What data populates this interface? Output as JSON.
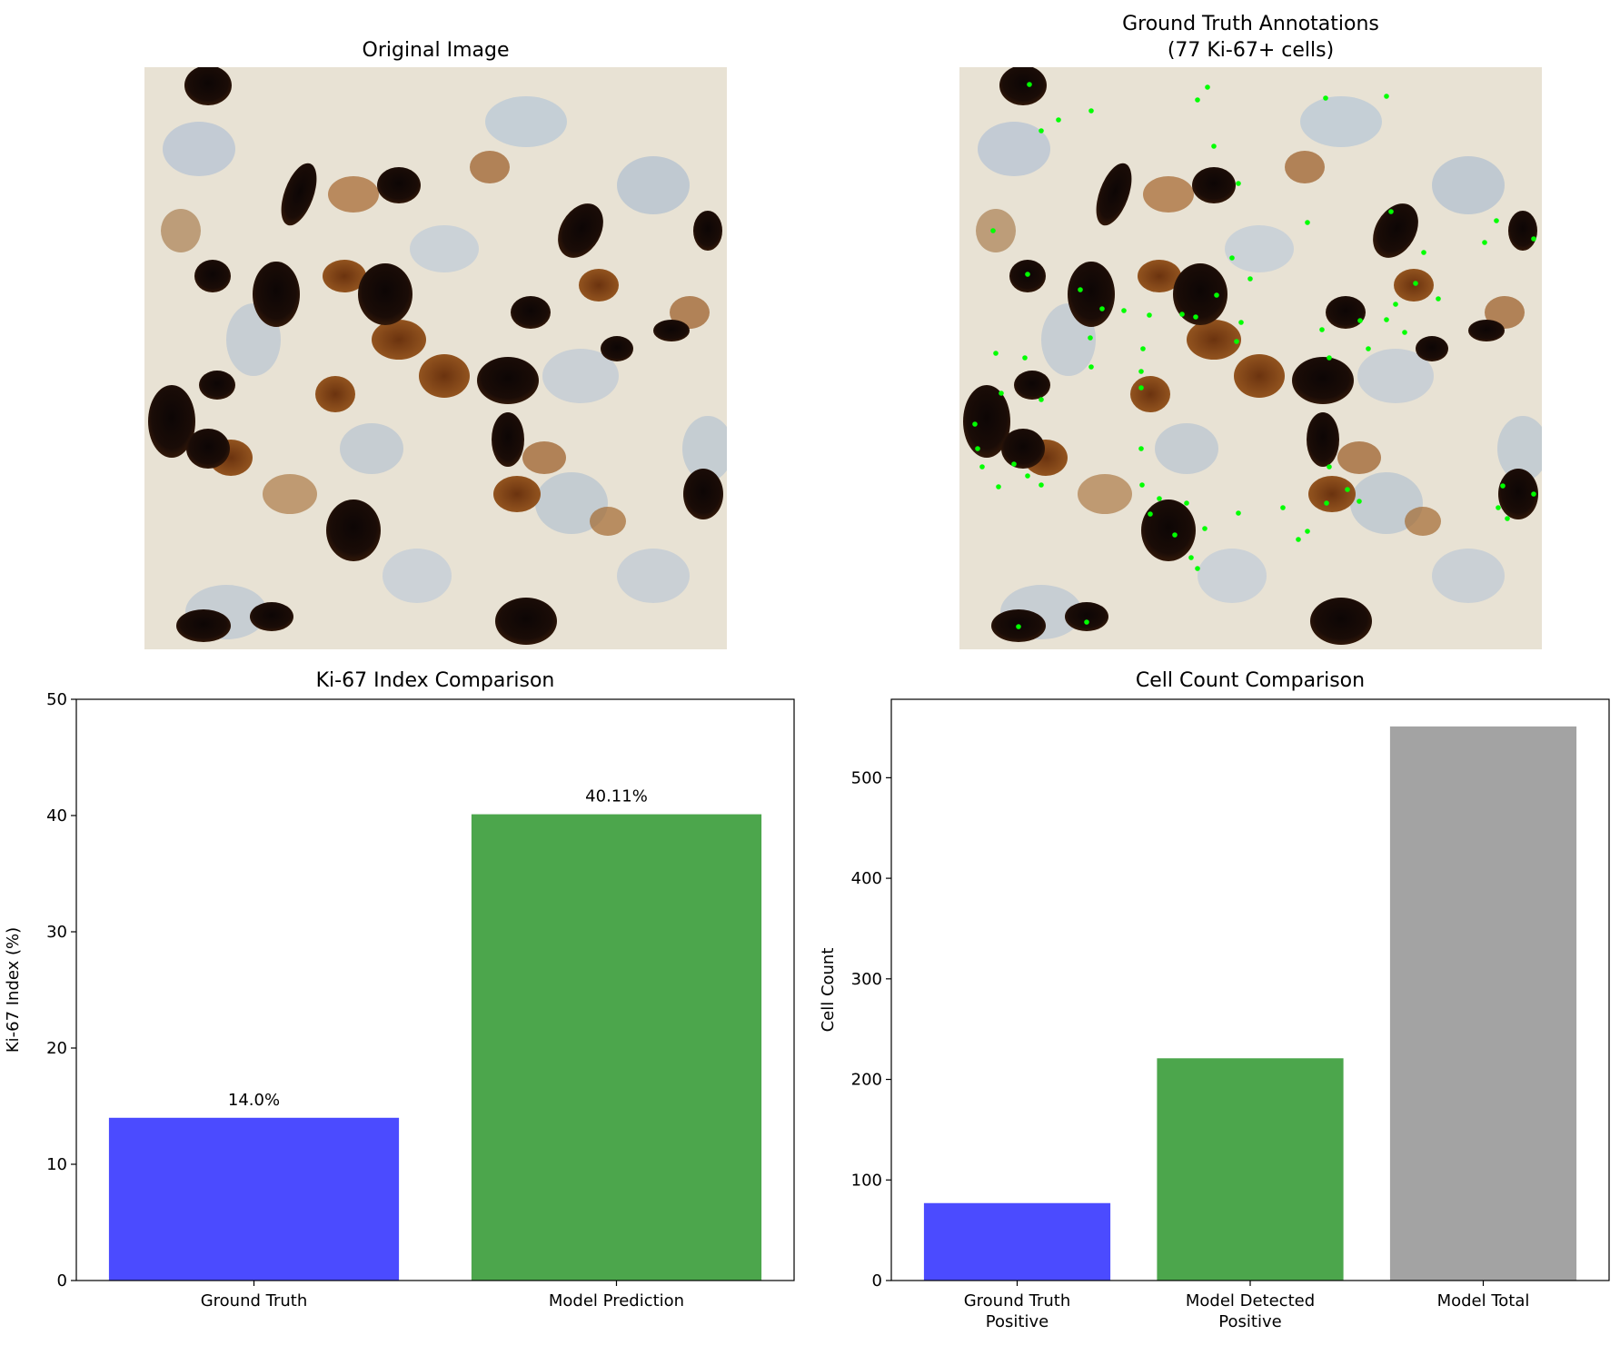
{
  "panels": {
    "original": {
      "title": "Original Image"
    },
    "annotations": {
      "title_line1": "Ground Truth Annotations",
      "title_line2": "(77 Ki-67+ cells)"
    }
  },
  "colors": {
    "blue": "#4b4bff",
    "green": "#4ca64c",
    "gray": "#a3a3a3",
    "marker": "#00ff00"
  },
  "chart_data": [
    {
      "type": "bar",
      "title": "Ki-67 Index Comparison",
      "xlabel": "",
      "ylabel": "Ki-67 Index (%)",
      "ylim": [
        0,
        50
      ],
      "yticks": [
        0,
        10,
        20,
        30,
        40,
        50
      ],
      "categories": [
        "Ground Truth",
        "Model Prediction"
      ],
      "values": [
        14.0,
        40.11
      ],
      "value_labels": [
        "14.0%",
        "40.11%"
      ],
      "bar_colors": [
        "#4b4bff",
        "#4ca64c"
      ],
      "grid": false
    },
    {
      "type": "bar",
      "title": "Cell Count Comparison",
      "xlabel": "",
      "ylabel": "Cell Count",
      "ylim": [
        0,
        578
      ],
      "yticks": [
        0,
        100,
        200,
        300,
        400,
        500
      ],
      "categories": [
        [
          "Ground Truth",
          "Positive"
        ],
        [
          "Model Detected",
          "Positive"
        ],
        [
          "Model Total"
        ]
      ],
      "values": [
        77,
        221,
        551
      ],
      "bar_colors": [
        "#4b4bff",
        "#4ca64c",
        "#a3a3a3"
      ],
      "grid": false
    }
  ]
}
